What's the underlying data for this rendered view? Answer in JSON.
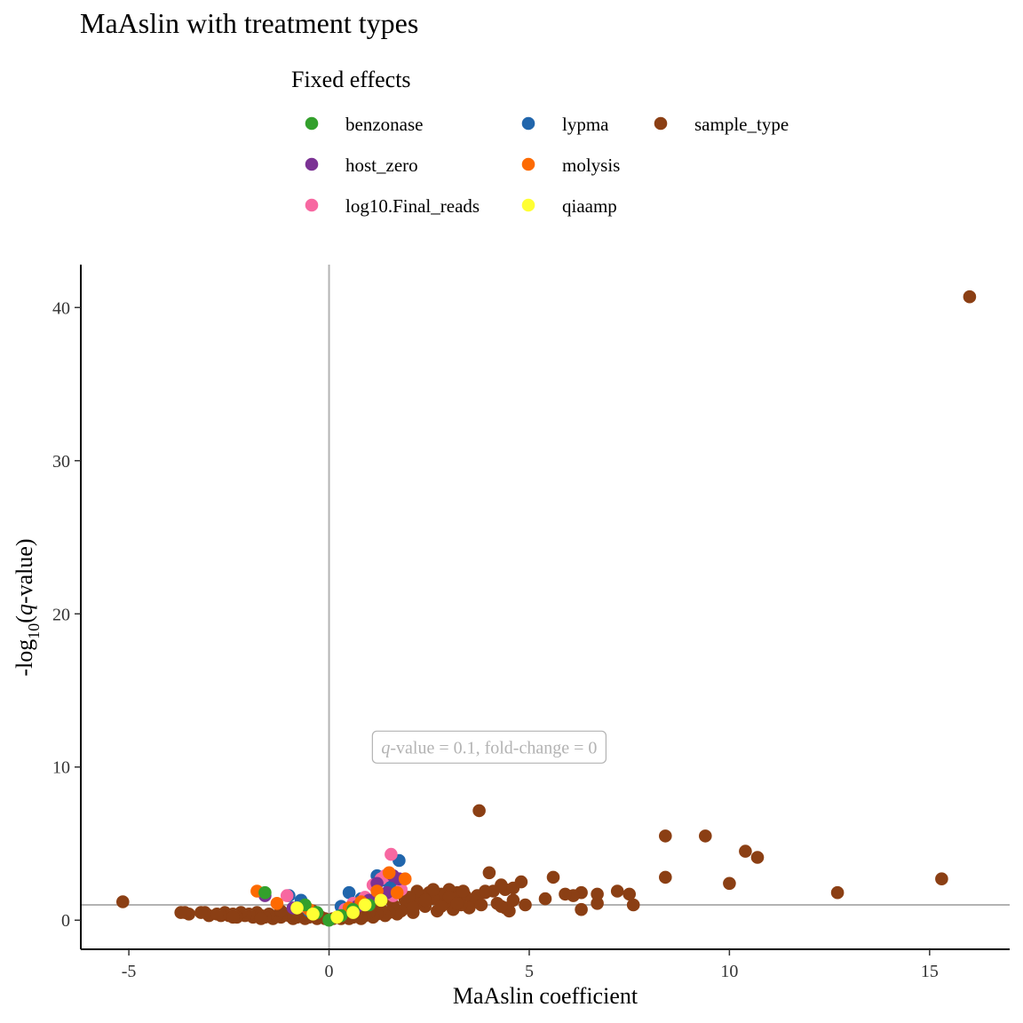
{
  "chart_data": {
    "type": "scatter",
    "title": "MaAslin with treatment types",
    "xlabel": "MaAslin coefficient",
    "ylabel": {
      "prefix": "-log",
      "subscript": "10",
      "open": "(",
      "italic": "q",
      "suffix": "-value)"
    },
    "xlim": [
      -6.2,
      17.0
    ],
    "ylim": [
      -1.9,
      42.8
    ],
    "x_ticks": [
      -5,
      0,
      5,
      10,
      15
    ],
    "y_ticks": [
      0,
      10,
      20,
      30,
      40
    ],
    "reference_lines": {
      "vertical_x": 0,
      "horizontal_y": 1,
      "color": "#b3b3b3"
    },
    "annotation": {
      "x": 4.0,
      "y": 11.3,
      "italic": "q",
      "text": "-value = 0.1, fold-change = 0"
    },
    "grid": false,
    "legend": {
      "title": "Fixed effects",
      "position": "top",
      "entries": [
        {
          "name": "benzonase",
          "color": "#33a02c"
        },
        {
          "name": "host_zero",
          "color": "#7b3294"
        },
        {
          "name": "log10.Final_reads",
          "color": "#f768a1"
        },
        {
          "name": "lypma",
          "color": "#2166ac"
        },
        {
          "name": "molysis",
          "color": "#fd6a02"
        },
        {
          "name": "qiaamp",
          "color": "#ffff33"
        },
        {
          "name": "sample_type",
          "color": "#8b3f14"
        }
      ]
    },
    "series": [
      {
        "name": "sample_type",
        "color": "#8b3f14",
        "points": [
          [
            16.0,
            40.7
          ],
          [
            15.3,
            2.7
          ],
          [
            12.7,
            1.8
          ],
          [
            10.7,
            4.1
          ],
          [
            10.4,
            4.5
          ],
          [
            10.0,
            2.4
          ],
          [
            9.4,
            5.5
          ],
          [
            8.4,
            5.5
          ],
          [
            8.4,
            2.8
          ],
          [
            7.6,
            1.0
          ],
          [
            7.5,
            1.7
          ],
          [
            7.2,
            1.9
          ],
          [
            6.7,
            1.1
          ],
          [
            6.7,
            1.7
          ],
          [
            6.3,
            0.7
          ],
          [
            6.3,
            1.8
          ],
          [
            6.1,
            1.6
          ],
          [
            5.9,
            1.7
          ],
          [
            5.6,
            2.8
          ],
          [
            5.4,
            1.4
          ],
          [
            4.9,
            1.0
          ],
          [
            4.8,
            2.5
          ],
          [
            4.6,
            1.3
          ],
          [
            4.5,
            0.6
          ],
          [
            4.4,
            0.8
          ],
          [
            4.4,
            2.0
          ],
          [
            4.3,
            2.3
          ],
          [
            4.2,
            1.1
          ],
          [
            4.1,
            1.9
          ],
          [
            4.0,
            3.1
          ],
          [
            3.9,
            1.8
          ],
          [
            3.75,
            7.15
          ],
          [
            3.7,
            1.6
          ],
          [
            3.6,
            1.3
          ],
          [
            3.5,
            0.8
          ],
          [
            3.4,
            1.6
          ],
          [
            3.3,
            1.0
          ],
          [
            3.2,
            1.8
          ],
          [
            3.1,
            0.7
          ],
          [
            3.0,
            2.0
          ],
          [
            2.9,
            1.2
          ],
          [
            2.8,
            1.7
          ],
          [
            2.7,
            0.6
          ],
          [
            2.6,
            1.4
          ],
          [
            2.5,
            1.8
          ],
          [
            2.4,
            0.9
          ],
          [
            2.3,
            1.6
          ],
          [
            2.2,
            1.2
          ],
          [
            2.1,
            0.5
          ],
          [
            2.0,
            1.0
          ],
          [
            1.9,
            1.3
          ],
          [
            1.8,
            0.6
          ],
          [
            1.7,
            0.4
          ],
          [
            1.6,
            1.0
          ],
          [
            1.5,
            0.5
          ],
          [
            1.4,
            0.3
          ],
          [
            1.3,
            0.7
          ],
          [
            1.2,
            0.4
          ],
          [
            1.1,
            0.2
          ],
          [
            1.0,
            0.5
          ],
          [
            0.9,
            0.3
          ],
          [
            0.8,
            0.1
          ],
          [
            0.7,
            0.4
          ],
          [
            0.6,
            0.2
          ],
          [
            0.5,
            0.1
          ],
          [
            0.4,
            0.3
          ],
          [
            0.3,
            0.1
          ],
          [
            0.2,
            0.2
          ],
          [
            0.1,
            0.1
          ],
          [
            -0.1,
            0.1
          ],
          [
            -0.2,
            0.2
          ],
          [
            -0.3,
            0.1
          ],
          [
            -0.4,
            0.3
          ],
          [
            -0.5,
            0.2
          ],
          [
            -0.6,
            0.1
          ],
          [
            -0.7,
            0.3
          ],
          [
            -0.8,
            0.2
          ],
          [
            -0.9,
            0.1
          ],
          [
            -1.0,
            0.3
          ],
          [
            -1.1,
            0.4
          ],
          [
            -1.2,
            0.2
          ],
          [
            -1.3,
            0.3
          ],
          [
            -1.4,
            0.1
          ],
          [
            -1.5,
            0.4
          ],
          [
            -1.6,
            0.2
          ],
          [
            -1.7,
            0.3
          ],
          [
            -1.8,
            0.5
          ],
          [
            -1.9,
            0.2
          ],
          [
            -2.0,
            0.4
          ],
          [
            -2.1,
            0.3
          ],
          [
            -2.2,
            0.5
          ],
          [
            -2.3,
            0.2
          ],
          [
            -2.4,
            0.4
          ],
          [
            -2.5,
            0.3
          ],
          [
            -2.6,
            0.5
          ],
          [
            -2.7,
            0.3
          ],
          [
            -3.0,
            0.3
          ],
          [
            -3.1,
            0.5
          ],
          [
            -3.2,
            0.5
          ],
          [
            -3.5,
            0.4
          ],
          [
            -3.6,
            0.5
          ],
          [
            -3.7,
            0.5
          ],
          [
            -5.15,
            1.2
          ],
          [
            2.2,
            1.9
          ],
          [
            2.6,
            2.0
          ],
          [
            3.35,
            1.9
          ],
          [
            3.9,
            1.9
          ],
          [
            4.6,
            2.1
          ],
          [
            3.0,
            1.5
          ],
          [
            2.0,
            1.5
          ],
          [
            1.8,
            1.8
          ],
          [
            2.4,
            1.3
          ],
          [
            3.2,
            1.1
          ],
          [
            3.8,
            1.0
          ],
          [
            4.3,
            0.9
          ],
          [
            2.8,
            0.9
          ],
          [
            2.1,
            0.8
          ],
          [
            1.5,
            1.4
          ],
          [
            1.2,
            1.1
          ],
          [
            0.9,
            0.8
          ],
          [
            0.7,
            0.6
          ],
          [
            -0.4,
            0.6
          ],
          [
            -0.8,
            0.5
          ],
          [
            -1.2,
            0.6
          ],
          [
            -2.8,
            0.4
          ],
          [
            -2.4,
            0.2
          ],
          [
            -1.7,
            0.1
          ]
        ]
      },
      {
        "name": "lypma",
        "color": "#2166ac",
        "points": [
          [
            1.75,
            3.9
          ],
          [
            1.2,
            2.9
          ],
          [
            1.4,
            2.6
          ],
          [
            1.6,
            2.2
          ],
          [
            0.5,
            1.8
          ],
          [
            0.8,
            1.4
          ],
          [
            1.0,
            1.2
          ],
          [
            0.3,
            0.9
          ],
          [
            -1.0,
            1.6
          ],
          [
            -0.7,
            1.3
          ],
          [
            -0.5,
            0.6
          ]
        ]
      },
      {
        "name": "log10.Final_reads",
        "color": "#f768a1",
        "points": [
          [
            1.55,
            4.3
          ],
          [
            1.3,
            2.7
          ],
          [
            1.1,
            2.3
          ],
          [
            1.8,
            2.0
          ],
          [
            0.9,
            1.5
          ],
          [
            0.6,
            1.1
          ],
          [
            1.6,
            1.6
          ],
          [
            0.4,
            0.7
          ],
          [
            -1.05,
            1.6
          ],
          [
            -0.6,
            0.9
          ],
          [
            1.4,
            2.9
          ]
        ]
      },
      {
        "name": "host_zero",
        "color": "#7b3294",
        "points": [
          [
            1.75,
            2.7
          ],
          [
            1.45,
            1.8
          ],
          [
            1.2,
            2.4
          ],
          [
            1.0,
            1.3
          ],
          [
            0.7,
            0.9
          ],
          [
            -1.6,
            1.6
          ],
          [
            -0.9,
            0.8
          ],
          [
            -0.4,
            0.5
          ],
          [
            1.6,
            2.9
          ]
        ]
      },
      {
        "name": "molysis",
        "color": "#fd6a02",
        "points": [
          [
            1.9,
            2.7
          ],
          [
            1.5,
            3.1
          ],
          [
            1.7,
            1.8
          ],
          [
            1.2,
            1.9
          ],
          [
            0.8,
            1.2
          ],
          [
            0.5,
            0.8
          ],
          [
            -1.8,
            1.9
          ],
          [
            -1.3,
            1.1
          ],
          [
            -0.5,
            0.7
          ]
        ]
      },
      {
        "name": "benzonase",
        "color": "#33a02c",
        "points": [
          [
            -1.6,
            1.8
          ],
          [
            -0.6,
            1.0
          ],
          [
            -0.3,
            0.5
          ],
          [
            0.3,
            0.3
          ],
          [
            0.6,
            0.7
          ],
          [
            1.0,
            1.0
          ],
          [
            0.0,
            0.0
          ]
        ]
      },
      {
        "name": "qiaamp",
        "color": "#ffff33",
        "points": [
          [
            1.3,
            1.3
          ],
          [
            0.9,
            1.0
          ],
          [
            0.6,
            0.5
          ],
          [
            -0.8,
            0.8
          ],
          [
            -0.4,
            0.4
          ],
          [
            0.2,
            0.2
          ]
        ]
      }
    ]
  }
}
